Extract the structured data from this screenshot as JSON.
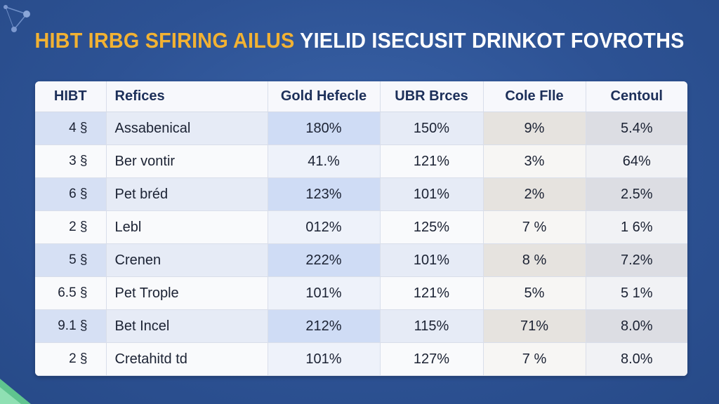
{
  "title": {
    "part1": "HIBT IRBG SFIRING AILUS",
    "part2": "YIELID ISECUSIT DRINKOT FOVROTHS"
  },
  "table": {
    "headers": [
      "HIBT",
      "Refices",
      "Gold Hefecle",
      "UBR Brces",
      "Cole Flle",
      "Centoul"
    ],
    "rows": [
      [
        "4 §",
        "Assabenical",
        "180%",
        "150%",
        "9%",
        "5.4%"
      ],
      [
        "3 §",
        "Ber vontir",
        "41.%",
        "121%",
        "3%",
        "64%"
      ],
      [
        "6 §",
        "Pet bréd",
        "123%",
        "101%",
        "2%",
        "2.5%"
      ],
      [
        "2 §",
        "Lebl",
        "012%",
        "125%",
        "7 %",
        "1 6%"
      ],
      [
        "5 §",
        "Crenen",
        "222%",
        "101%",
        "8 %",
        "7.2%"
      ],
      [
        "6.5 §",
        "Pet Trople",
        "101%",
        "121%",
        "5%",
        "5 1%"
      ],
      [
        "9.1 §",
        "Bet Incel",
        "212%",
        "115%",
        "71%",
        "8.0%"
      ],
      [
        "2 §",
        "Cretahitd td",
        "101%",
        "127%",
        "7 %",
        "8.0%"
      ]
    ]
  },
  "colors": {
    "background": "#2f5597",
    "title_accent": "#f2b233",
    "title_main": "#ffffff",
    "gold_highlight": "#cfdcf5"
  },
  "icons": [
    "network-decoration-icon",
    "corner-leaf-icon"
  ]
}
